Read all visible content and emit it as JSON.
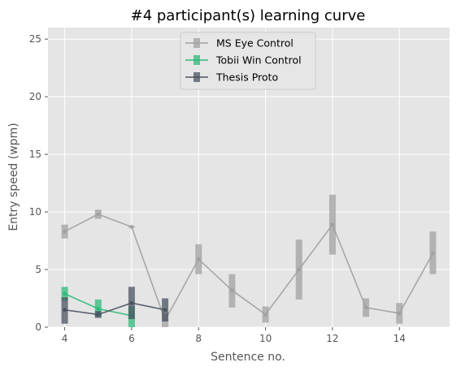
{
  "chart_data": {
    "type": "line",
    "title": "#4 participant(s) learning curve",
    "xlabel": "Sentence no.",
    "ylabel": "Entry speed (wpm)",
    "xlim": [
      3.5,
      15.5
    ],
    "ylim": [
      0,
      26
    ],
    "xticks": [
      4,
      6,
      8,
      10,
      12,
      14
    ],
    "yticks": [
      0,
      5,
      10,
      15,
      20,
      25
    ],
    "grid": true,
    "legend_position": "top-center",
    "series": [
      {
        "name": "MS Eye Control",
        "color": "#a0a0a0",
        "x": [
          4,
          5,
          6,
          7,
          8,
          9,
          10,
          11,
          12,
          13,
          14,
          15
        ],
        "y": [
          8.3,
          9.8,
          8.7,
          0.6,
          5.9,
          3.2,
          1.1,
          5.0,
          8.9,
          1.7,
          1.2,
          6.4
        ],
        "err_low": [
          7.7,
          9.4,
          8.7,
          0.0,
          4.6,
          1.7,
          0.4,
          2.4,
          6.3,
          0.9,
          0.3,
          4.6
        ],
        "err_high": [
          8.9,
          10.2,
          8.7,
          1.2,
          7.2,
          4.6,
          1.8,
          7.6,
          11.5,
          2.5,
          2.1,
          8.3
        ]
      },
      {
        "name": "Tobii Win Control",
        "color": "#2eb87a",
        "x": [
          4,
          5,
          6
        ],
        "y": [
          2.9,
          1.6,
          1.0
        ],
        "err_low": [
          2.3,
          0.9,
          0.0
        ],
        "err_high": [
          3.5,
          2.4,
          1.8
        ]
      },
      {
        "name": "Thesis Proto",
        "color": "#4a5260",
        "x": [
          4,
          5,
          6,
          7
        ],
        "y": [
          1.5,
          1.1,
          2.1,
          1.5
        ],
        "err_low": [
          0.3,
          0.8,
          0.7,
          0.5
        ],
        "err_high": [
          2.6,
          1.4,
          3.5,
          2.5
        ]
      }
    ]
  }
}
